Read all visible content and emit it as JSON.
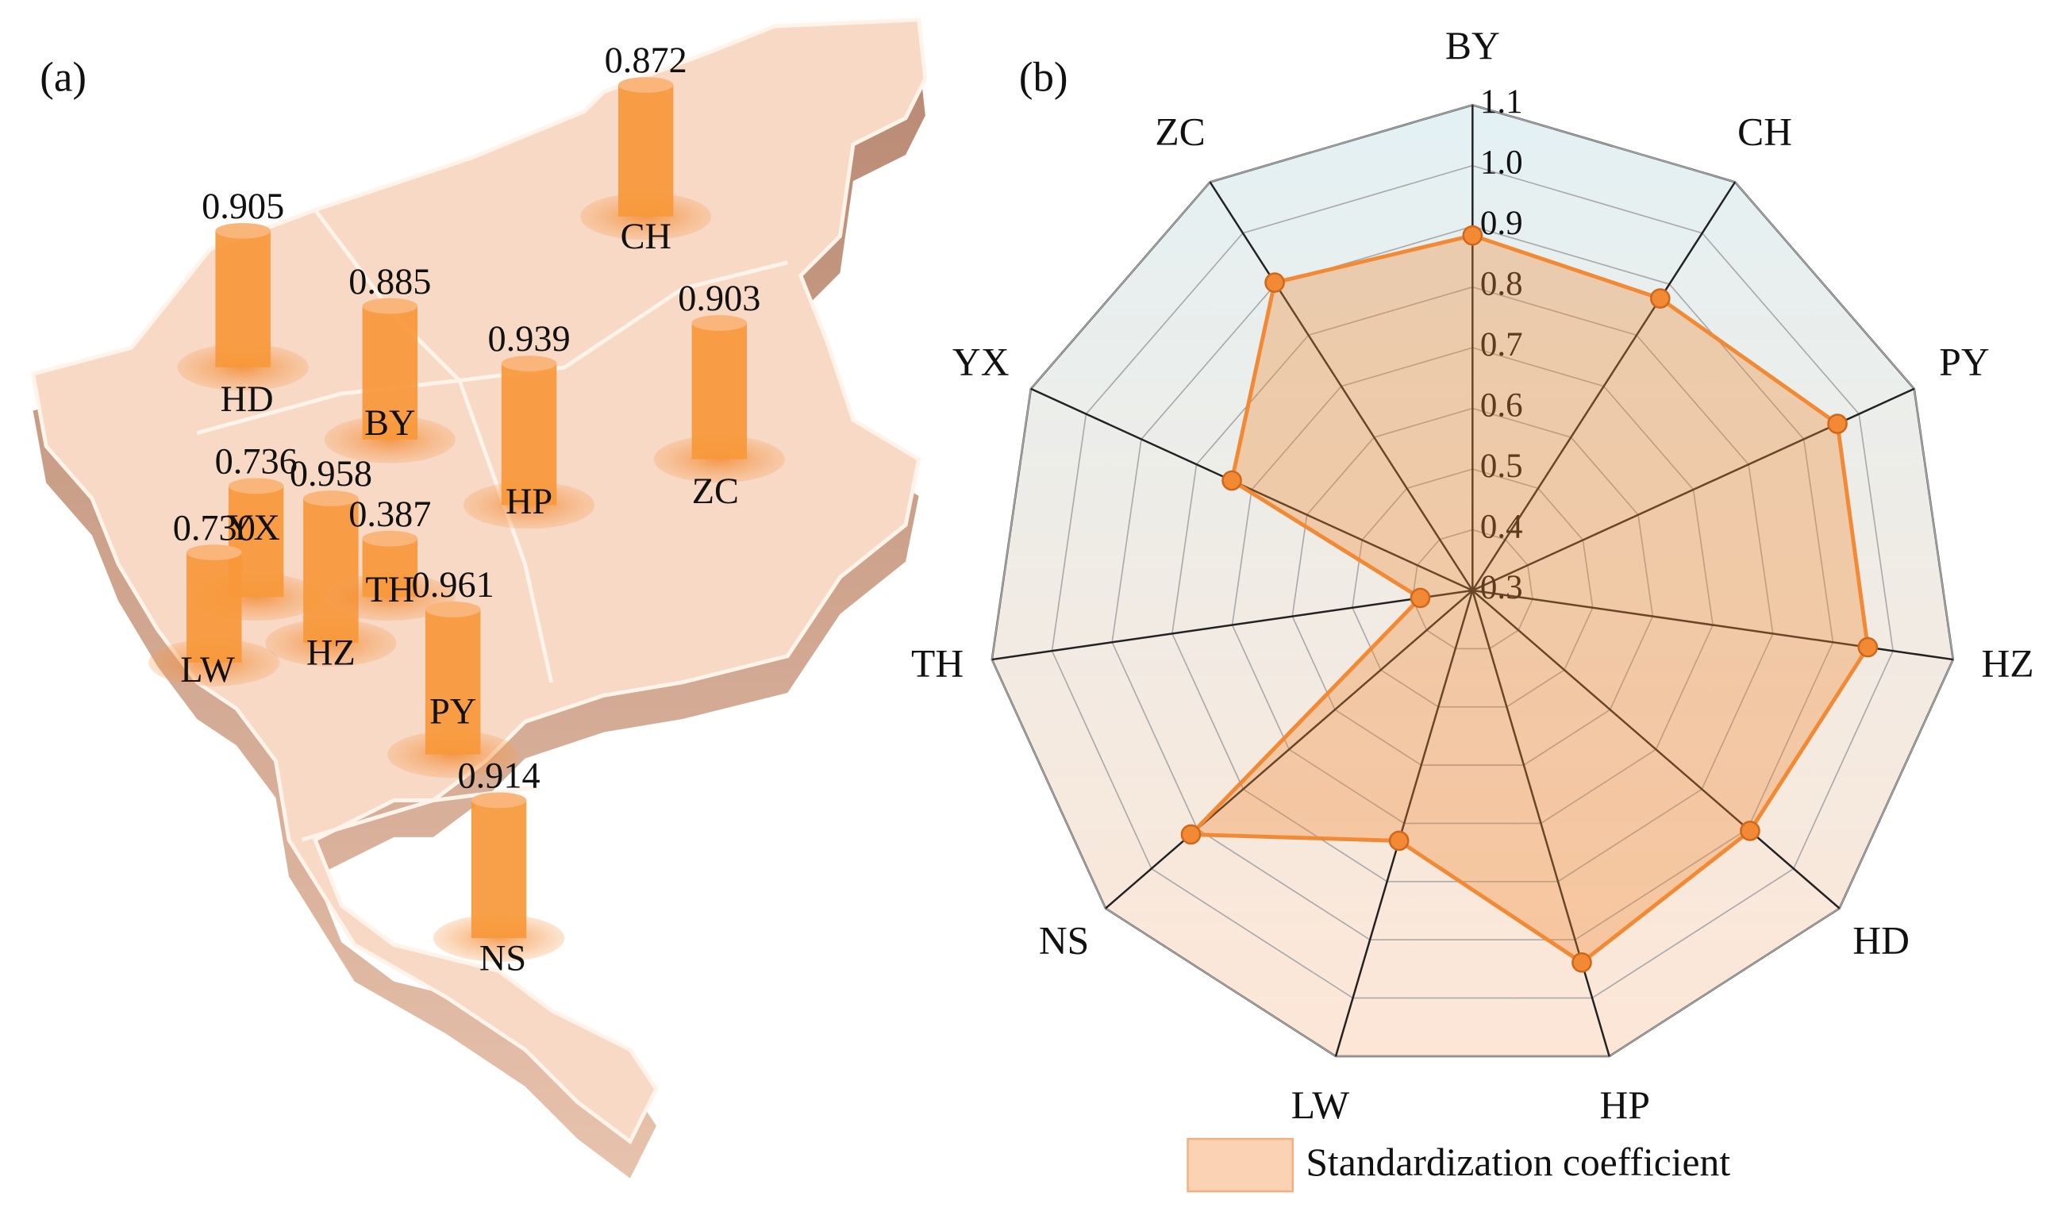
{
  "chart_data": [
    {
      "type": "bar",
      "title": "(a)",
      "categories": [
        "CH",
        "HD",
        "BY",
        "HP",
        "ZC",
        "YX",
        "HZ",
        "TH",
        "PY",
        "LW",
        "NS"
      ],
      "values": [
        0.872,
        0.905,
        0.885,
        0.939,
        0.903,
        0.736,
        0.958,
        0.387,
        0.961,
        0.73,
        0.914
      ],
      "value_labels": [
        "0.872",
        "0.905",
        "0.885",
        "0.939",
        "0.903",
        "0.736",
        "0.958",
        "0.387",
        "0.961",
        "0.730",
        "0.914"
      ],
      "color": "#f7983a"
    },
    {
      "type": "radar",
      "title": "(b)",
      "categories": [
        "BY",
        "CH",
        "PY",
        "HZ",
        "HD",
        "HP",
        "LW",
        "NS",
        "TH",
        "YX",
        "ZC"
      ],
      "series": [
        {
          "name": "Standardization coefficient",
          "color": "#f28a35",
          "values": [
            0.885,
            0.872,
            0.961,
            0.958,
            0.905,
            0.939,
            0.73,
            0.914,
            0.387,
            0.736,
            0.903
          ]
        }
      ],
      "ylim": [
        0.3,
        1.1
      ],
      "yticks": [
        0.3,
        0.4,
        0.5,
        0.6,
        0.7,
        0.8,
        0.9,
        {
          "value": 1,
          "label": "1.0"
        },
        1.1
      ],
      "grid": true
    }
  ]
}
